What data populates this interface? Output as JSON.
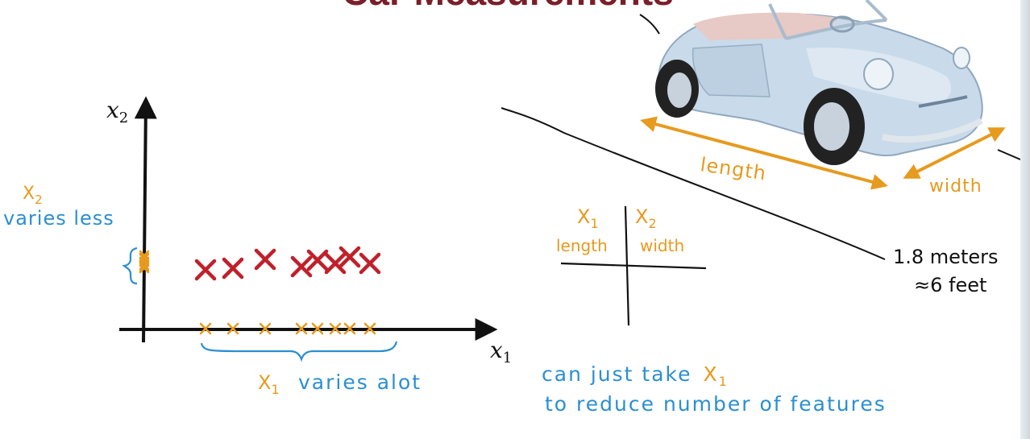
{
  "slide": {
    "title": "Car Measurements"
  },
  "plot": {
    "x_axis_label": "x",
    "x_axis_sub": "1",
    "y_axis_label": "x",
    "y_axis_sub": "2",
    "x2_note_var": "X",
    "x2_note_sub": "2",
    "x2_note_text": "varies less",
    "x1_note_var": "X",
    "x1_note_sub": "1",
    "x1_note_text": "varies alot",
    "points": [
      {
        "x1": 255,
        "x2": 335
      },
      {
        "x1": 289,
        "x2": 333
      },
      {
        "x1": 329,
        "x2": 322
      },
      {
        "x1": 374,
        "x2": 331
      },
      {
        "x1": 394,
        "x2": 323
      },
      {
        "x1": 416,
        "x2": 327
      },
      {
        "x1": 434,
        "x2": 319
      },
      {
        "x1": 459,
        "x2": 327
      }
    ]
  },
  "table": {
    "col1_var": "X",
    "col1_sub": "1",
    "col1_label": "length",
    "col2_var": "X",
    "col2_sub": "2",
    "col2_label": "width"
  },
  "car": {
    "length_label": "length",
    "width_label": "width",
    "width_value_line1": "1.8 meters",
    "width_value_line2": "≈6 feet"
  },
  "conclusion": {
    "line1_prefix": "can just take",
    "line1_var": "X",
    "line1_sub": "1",
    "line2": "to reduce number of features"
  },
  "colors": {
    "ink": "#111111",
    "data_red": "#c0202a",
    "orange": "#e69a1e",
    "blue": "#2b8fd0",
    "title_red": "#7a1f28",
    "car_body": "#c9daea"
  }
}
